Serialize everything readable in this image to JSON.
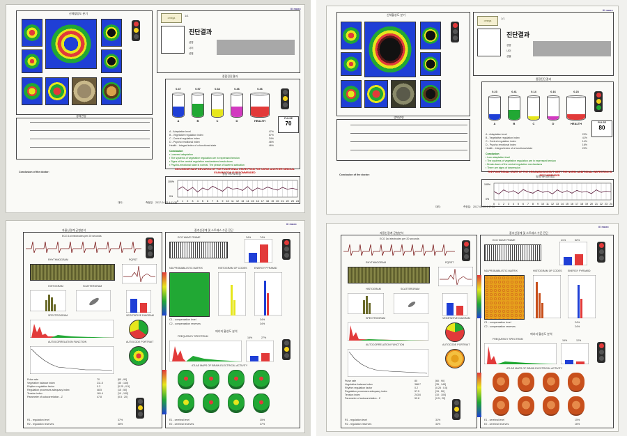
{
  "photos": [
    {
      "id": "left",
      "top_sheet": {
        "brand": "omega",
        "brand_mark": "iii maxx",
        "page_no": "1/1",
        "images_title": "신체활성도 분기",
        "diag_title": "진단결과",
        "info_labels": [
          "성명",
          "나이",
          "성별"
        ],
        "indicators_title": "종합진단결과",
        "cylinders": [
          {
            "label": "A",
            "value": "0.47",
            "level": 0.47,
            "color": "#1f3fd6"
          },
          {
            "label": "B",
            "value": "0.57",
            "level": 0.57,
            "color": "#21a834"
          },
          {
            "label": "C",
            "value": "0.34",
            "level": 0.34,
            "color": "#e6e61c"
          },
          {
            "label": "D",
            "value": "0.46",
            "level": 0.46,
            "color": "#d23ac0"
          },
          {
            "label": "HEALTH",
            "value": "0.46",
            "level": 0.46,
            "color": "#e23a3a"
          }
        ],
        "pulse_label": "PULSE",
        "pulse_value": "70",
        "legend": [
          {
            "text": "A - Adaptation level",
            "pct": "47%"
          },
          {
            "text": "B - Vegetative regulation index",
            "pct": "57%"
          },
          {
            "text": "C - Central regulation index",
            "pct": "34%"
          },
          {
            "text": "D - Psycho emotional index",
            "pct": "46%"
          },
          {
            "text": "Health - Integral index of a functional state",
            "pct": "46%"
          }
        ],
        "conclusion_title": "Conclusion",
        "conclusions": [
          "Lowered adaptation",
          "The systems of vegetative regulation are in expressed tension",
          "Signs of the central regulation mechanisms break-down",
          "Psycho-emotional state is normal. The phase of lowered activation"
        ],
        "warning": "NON-SIGNIFICANT DEVIATION OF THE FUNCTIONAL STATE FROM THE NORM. ANOTHER MEDICAL EXAMINATION IS RECOMMENDED",
        "daily_title": "일일 바이오리듬",
        "left_chart_title": "생체연령",
        "axis_100": "100%",
        "axis_0": "0%",
        "hours": [
          "0",
          "1",
          "2",
          "3",
          "4",
          "5",
          "6",
          "7",
          "8",
          "9",
          "10",
          "11",
          "12",
          "13",
          "14",
          "15",
          "16",
          "17",
          "18",
          "19",
          "20",
          "21",
          "22",
          "23",
          "24"
        ],
        "daily_values": [
          45,
          62,
          38,
          58,
          30,
          55,
          42,
          65,
          50,
          35,
          60,
          48,
          52,
          40,
          63,
          37,
          55,
          45,
          60,
          50,
          42,
          58,
          47,
          53,
          44
        ],
        "doctor_label": "Conclusion of the doctor:",
        "footer_date": "2017-04-05 4:11:30",
        "footer_sign": "측정일:",
        "footer_code": "대리:"
      },
      "bottom_sheet": {
        "brand_mark": "iii maxx",
        "left_title": "자율신경계 균형분석",
        "right_title": "중추신경계 및 스트레스 수준 진단",
        "ecg_caption": "ECG 1st electrodes per 20 seconds",
        "rhythmogram": "RHYTHMOGRAM",
        "pqrst": "PQRST",
        "histogram": "HISTOGRAM",
        "scattergram": "SCATTERGRAM",
        "spectrogram": "SPECTROGRAM",
        "autocorrelation": "AUTOCORRELATION FUNCTION",
        "ecg_wave_title": "ECG WAVE FRAME",
        "nd_matrix": "ND-PROBABILISTIC MATRIX",
        "hist_codes": "HISTOGRAM OF CODES",
        "energy_pyramid": "ENERGY PYRAMID",
        "compensation": [
          "C1 - compensation level",
          "C2 - compensation reserves"
        ],
        "comp_pct": [
          "34%",
          "34%"
        ],
        "freq_spectrum": "FREQUENCY SPECTRUM",
        "brain_title": "ATLAS MAPS OF BRAIN ELECTRICAL ACTIVITY",
        "vegetative_diagram": "VEGETATIVE DIAGRAM",
        "autocode_portrait": "AUTOCODE PORTRAIT",
        "mid_title": "에너지 활성도 분석",
        "table_rows": [
          {
            "name": "Pulse rate",
            "v1": "70",
            "v2": "[60 ; 90]"
          },
          {
            "name": "Vegetative balance index",
            "v1": "211.5",
            "v2": "[35 ; 145]"
          },
          {
            "name": "Rhythm regulation factor",
            "v1": "0.3",
            "v2": "[0.25 ; 0.5]"
          },
          {
            "name": "Regulation processes adequacy index",
            "v1": "48.5",
            "v2": "[15 ; 50]"
          },
          {
            "name": "Tension index",
            "v1": "161.4",
            "v2": "[10 ; 100]"
          },
          {
            "name": "Parameter of autocorrelation - Z",
            "v1": "47.8",
            "v2": "[0.5 ; 20]"
          }
        ],
        "reg_labels": [
          "R1 - regulation level",
          "R2 - regulation reserves"
        ],
        "reg_pct": [
          "37%",
          "38%"
        ],
        "central_labels": [
          "E1 - cerebral level",
          "E2 - cerebral reserves"
        ],
        "central_pct": [
          "35%",
          "37%"
        ],
        "bar_pcts": [
          "34%",
          "74%"
        ],
        "mid_pcts": [
          "16%",
          "27%"
        ]
      }
    },
    {
      "id": "right",
      "top_sheet": {
        "brand": "omega",
        "brand_mark": "iii maxx",
        "page_no": "1/1",
        "images_title": "신체활성도 분기",
        "diag_title": "진단결과",
        "info_labels": [
          "성명",
          "나이",
          "성별"
        ],
        "indicators_title": "종합진단결과",
        "cylinders": [
          {
            "label": "A",
            "value": "0.23",
            "level": 0.23,
            "color": "#1f3fd6"
          },
          {
            "label": "B",
            "value": "0.41",
            "level": 0.41,
            "color": "#21a834"
          },
          {
            "label": "C",
            "value": "0.14",
            "level": 0.14,
            "color": "#e6e61c"
          },
          {
            "label": "D",
            "value": "0.16",
            "level": 0.16,
            "color": "#d23ac0"
          },
          {
            "label": "HEALTH",
            "value": "0.23",
            "level": 0.23,
            "color": "#e23a3a"
          }
        ],
        "pulse_label": "PULSE",
        "pulse_value": "80",
        "legend": [
          {
            "text": "A - Adaptation level",
            "pct": "23%"
          },
          {
            "text": "B - Vegetative regulation index",
            "pct": "41%"
          },
          {
            "text": "C - Central regulation index",
            "pct": "14%"
          },
          {
            "text": "D - Psycho emotional index",
            "pct": "16%"
          },
          {
            "text": "Health - Integral index of a functional state",
            "pct": "23%"
          }
        ],
        "conclusion_title": "Conclusion",
        "conclusions": [
          "Low adaptation level",
          "The systems of vegetative regulation are in expressed tension",
          "Break-down of the central regulation mechanisms",
          "There are signs of depression"
        ],
        "warning": "THE FUNCTIONAL STATE OF THE ORGANISM DOESN'T MEET THE NORM. ADDITIONAL INSPECTION IS RECOMMENDED",
        "daily_title": "일일 바이오리듬",
        "left_chart_title": "생체연령",
        "axis_100": "100%",
        "axis_0": "0%",
        "hours": [
          "0",
          "1",
          "2",
          "3",
          "4",
          "5",
          "6",
          "7",
          "8",
          "9",
          "10",
          "11",
          "12",
          "13",
          "14",
          "15",
          "16",
          "17",
          "18",
          "19",
          "20",
          "21",
          "22",
          "23",
          "24"
        ],
        "daily_values": [
          50,
          35,
          60,
          45,
          55,
          38,
          62,
          48,
          40,
          58,
          45,
          52,
          36,
          60,
          44,
          55,
          40,
          57,
          46,
          50,
          38,
          60,
          45,
          52,
          48
        ],
        "doctor_label": "Conclusion of the doctor:",
        "footer_date": "2017-04-05 4:17:55",
        "footer_sign": "측정일:",
        "footer_code": "대리:"
      },
      "bottom_sheet": {
        "brand_mark": "iii maxx",
        "left_title": "자율신경계 균형분석",
        "right_title": "중추신경계 및 스트레스 수준 진단",
        "ecg_caption": "ECG 1st electrodes per 20 seconds",
        "rhythmogram": "RHYTHMOGRAM",
        "pqrst": "PQRST",
        "histogram": "HISTOGRAM",
        "scattergram": "SCATTERGRAM",
        "spectrogram": "SPECTROGRAM",
        "autocorrelation": "AUTOCORRELATION FUNCTION",
        "ecg_wave_title": "ECG WAVE FRAME",
        "nd_matrix": "ND-PROBABILISTIC MATRIX",
        "hist_codes": "HISTOGRAM OF CODES",
        "energy_pyramid": "ENERGY PYRAMID",
        "compensation": [
          "C1 - compensation level",
          "C2 - compensation reserves"
        ],
        "comp_pct": [
          "24%",
          "24%"
        ],
        "freq_spectrum": "FREQUENCY SPECTRUM",
        "brain_title": "ATLAS MAPS OF BRAIN ELECTRICAL ACTIVITY",
        "vegetative_diagram": "VEGETATIVE DIAGRAM",
        "autocode_portrait": "AUTOCODE PORTRAIT",
        "mid_title": "에너지 활성도 분석",
        "table_rows": [
          {
            "name": "Pulse rate",
            "v1": "80",
            "v2": "[60 ; 90]"
          },
          {
            "name": "Vegetative balance index",
            "v1": "388.7",
            "v2": "[35 ; 145]"
          },
          {
            "name": "Rhythm regulation factor",
            "v1": "0.2",
            "v2": "[0.25 ; 0.5]"
          },
          {
            "name": "Regulation processes adequacy index",
            "v1": "57.5",
            "v2": "[15 ; 50]"
          },
          {
            "name": "Tension index",
            "v1": "243.6",
            "v2": "[10 ; 100]"
          },
          {
            "name": "Parameter of autocorrelation - Z",
            "v1": "52.8",
            "v2": "[0.5 ; 20]"
          }
        ],
        "reg_labels": [
          "R1 - regulation level",
          "R2 - regulation reserves"
        ],
        "reg_pct": [
          "31%",
          "32%"
        ],
        "central_labels": [
          "E1 - cerebral level",
          "E2 - cerebral reserves"
        ],
        "central_pct": [
          "15%",
          "16%"
        ],
        "bar_pcts": [
          "41%",
          "52%"
        ],
        "mid_pcts": [
          "16%",
          "12%"
        ]
      }
    }
  ],
  "colors": {
    "red": "#c40000",
    "green": "#0a7a0a",
    "blue": "#1f3fd6"
  }
}
